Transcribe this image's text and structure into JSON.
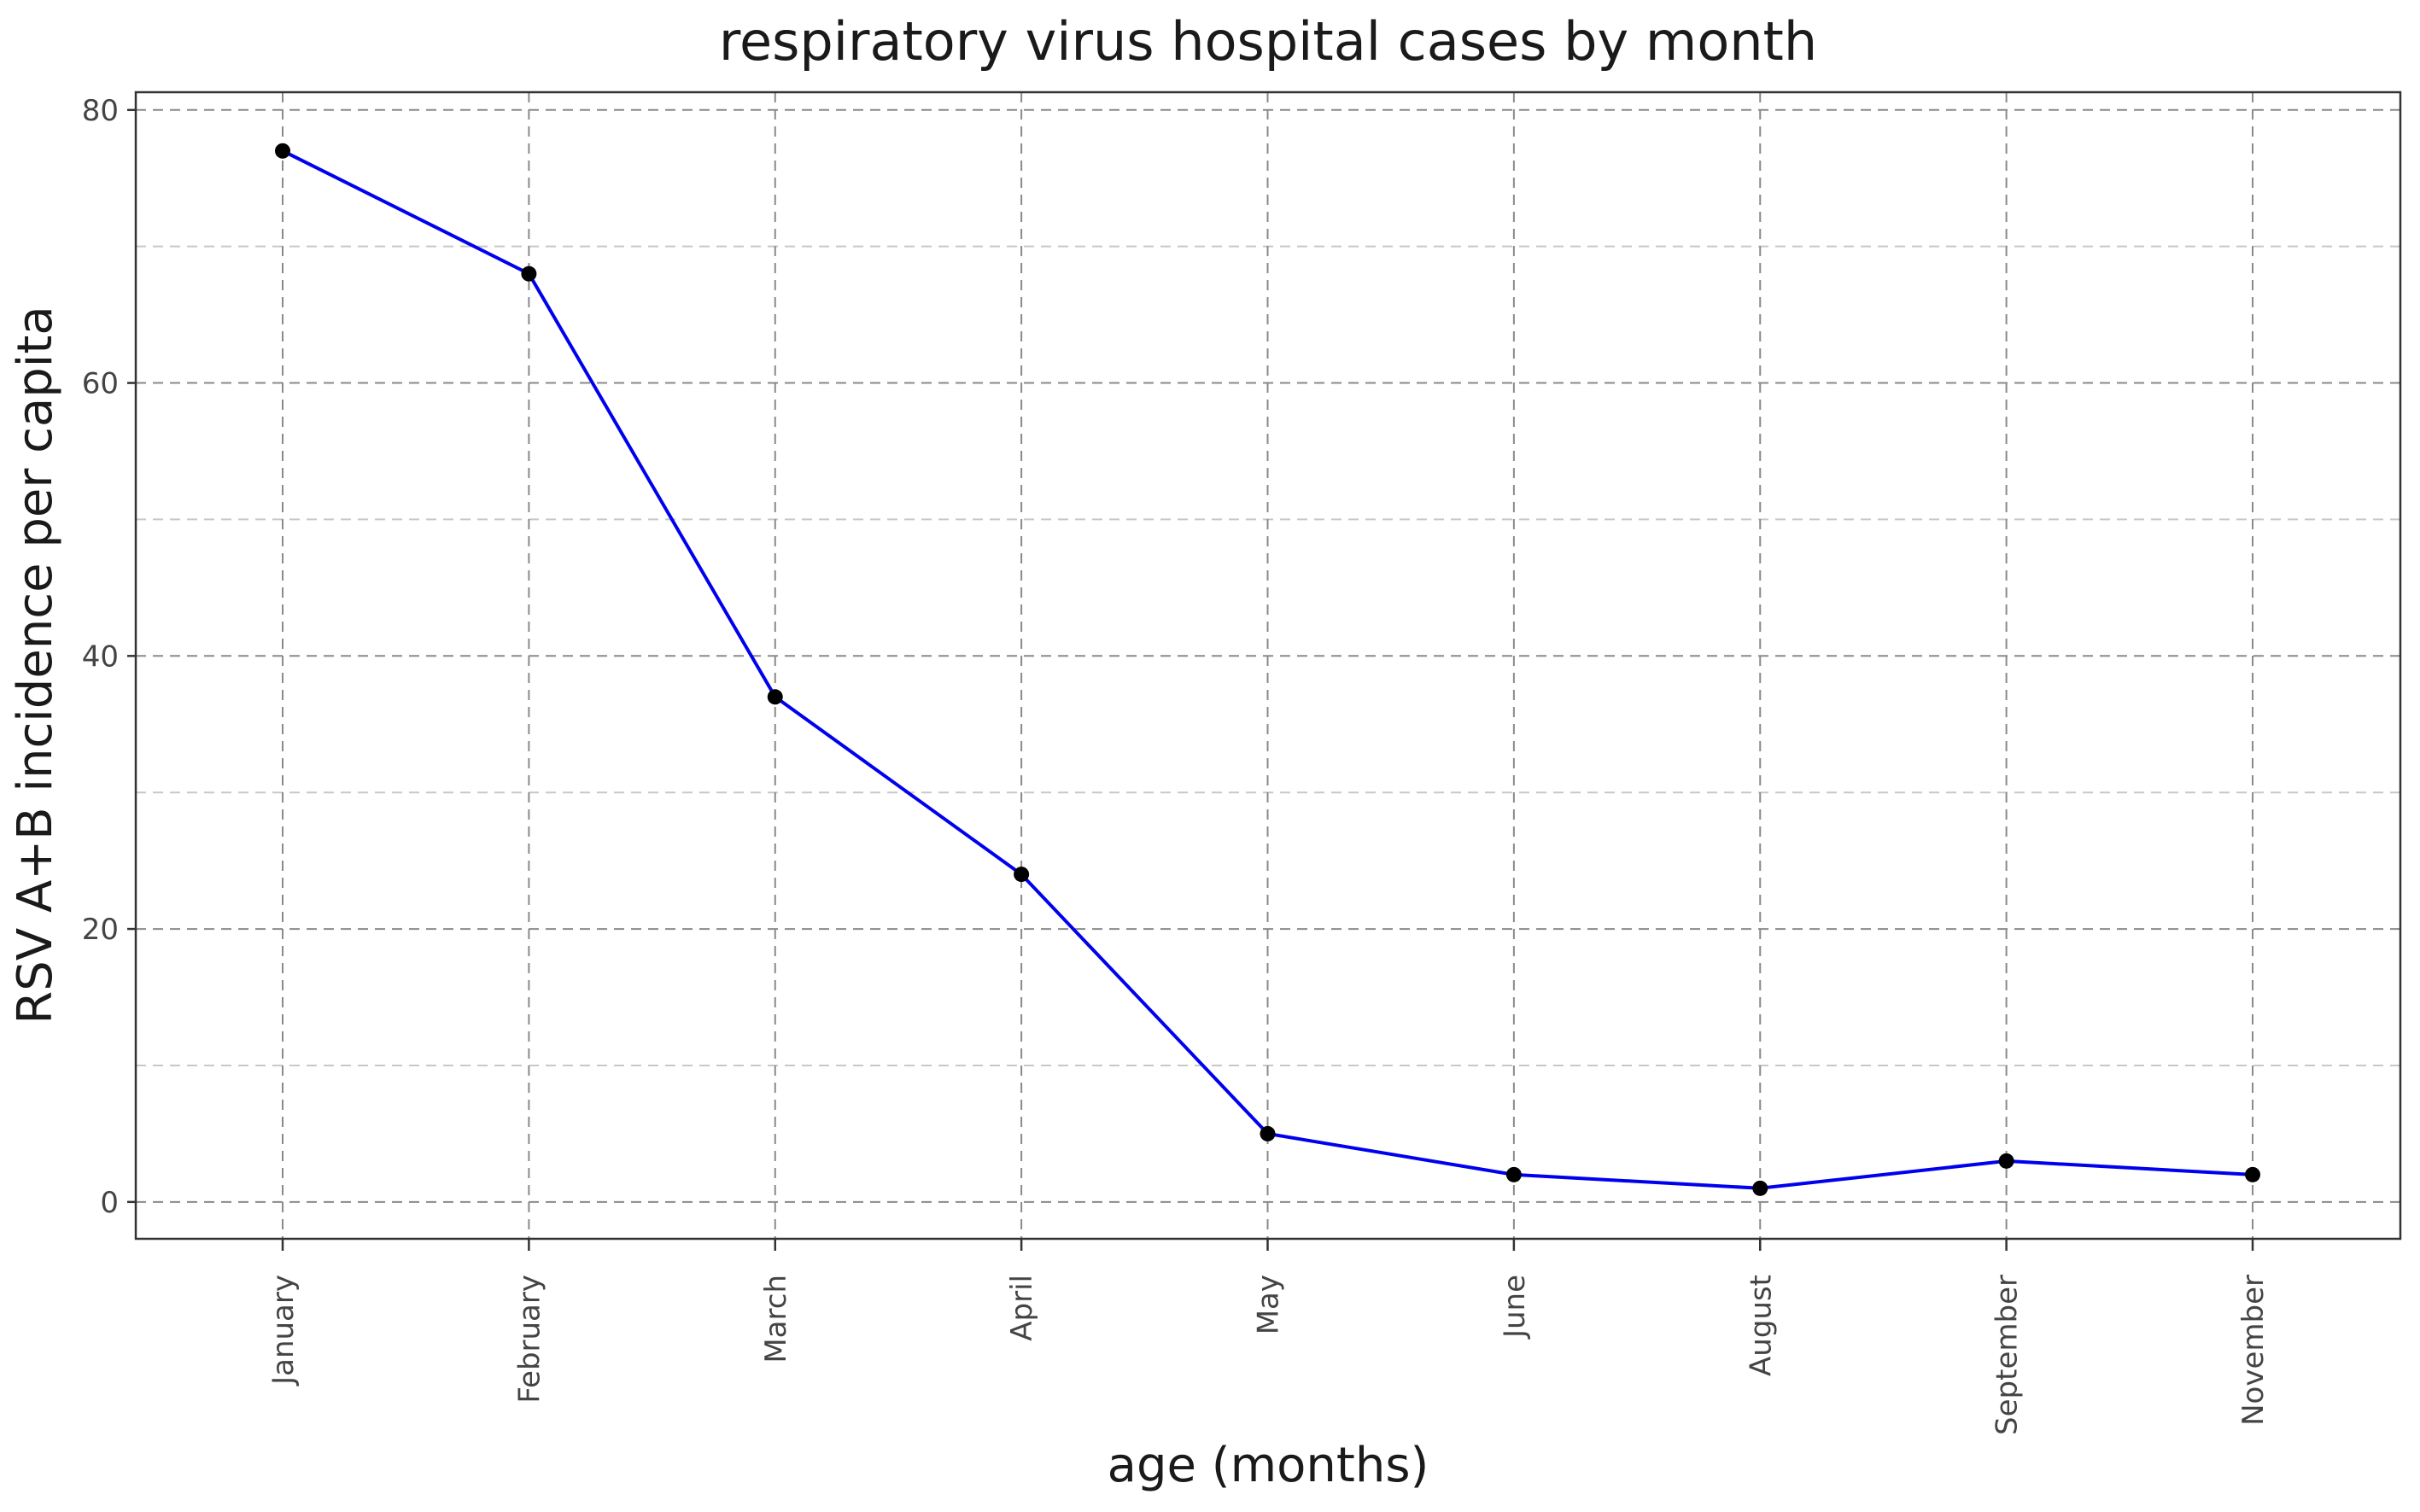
{
  "chart_data": {
    "type": "line",
    "title": "respiratory virus hospital cases by month",
    "xlabel": "age (months)",
    "ylabel": "RSV A+B incidence per capita",
    "categories": [
      "January",
      "February",
      "March",
      "April",
      "May",
      "June",
      "August",
      "September",
      "November"
    ],
    "series": [
      {
        "values": [
          77,
          68,
          37,
          24,
          5,
          2,
          1,
          3,
          2
        ],
        "color": "#0000ee",
        "marker_color": "#000000"
      }
    ],
    "ylim": [
      -2.7,
      81.3
    ],
    "yticks": [
      0,
      20,
      40,
      60,
      80
    ],
    "yticks_minor": [
      10,
      30,
      50,
      70
    ],
    "grid": true,
    "legend": "none"
  }
}
